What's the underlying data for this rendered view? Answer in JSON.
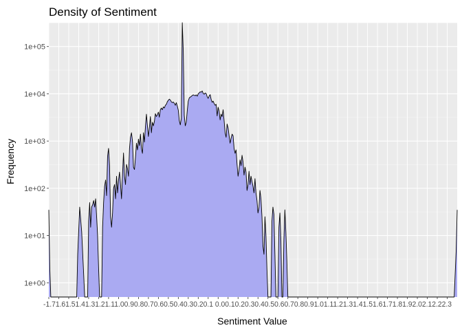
{
  "chart_data": {
    "type": "area",
    "title": "Density of Sentiment",
    "xlabel": "Sentiment Value",
    "ylabel": "Frequency",
    "y_scale": "log10",
    "ylim": [
      0.5,
      320000
    ],
    "xlim": [
      -1.7,
      2.4
    ],
    "grid": true,
    "legend": "none",
    "y_ticks": [
      {
        "value": 1,
        "label": "1e+00"
      },
      {
        "value": 10,
        "label": "1e+01"
      },
      {
        "value": 100,
        "label": "1e+02"
      },
      {
        "value": 1000,
        "label": "1e+03"
      },
      {
        "value": 10000,
        "label": "1e+04"
      },
      {
        "value": 100000,
        "label": "1e+05"
      }
    ],
    "x_tick_text": "-1.71.61.51.41.31.21.11.00.90.80.70.60.50.40.30.20.1 0.00.10.20.30.40.50.60.70.80.91.01.11.21.31.41.51.61.71.81.92.02.12.22.3",
    "x_tick_values": [
      -1.7,
      -1.6,
      -1.5,
      -1.4,
      -1.3,
      -1.2,
      -1.1,
      -1.0,
      -0.9,
      -0.8,
      -0.7,
      -0.6,
      -0.5,
      -0.4,
      -0.3,
      -0.2,
      -0.1,
      0.0,
      0.1,
      0.2,
      0.3,
      0.4,
      0.5,
      0.6,
      0.7,
      0.8,
      0.9,
      1.0,
      1.1,
      1.2,
      1.3,
      1.4,
      1.5,
      1.6,
      1.7,
      1.8,
      1.9,
      2.0,
      2.1,
      2.2,
      2.3
    ],
    "series": [
      {
        "fill": "#aaaaf2",
        "stroke": "#000000",
        "points": [
          [
            -1.7,
            35
          ],
          [
            -1.69,
            2
          ],
          [
            -1.68,
            0.5
          ],
          [
            -1.42,
            0.5
          ],
          [
            -1.41,
            4
          ],
          [
            -1.39,
            40
          ],
          [
            -1.37,
            12
          ],
          [
            -1.35,
            1.5
          ],
          [
            -1.34,
            0.5
          ],
          [
            -1.31,
            0.5
          ],
          [
            -1.3,
            20
          ],
          [
            -1.29,
            50
          ],
          [
            -1.28,
            15
          ],
          [
            -1.27,
            40
          ],
          [
            -1.26,
            45
          ],
          [
            -1.25,
            55
          ],
          [
            -1.24,
            40
          ],
          [
            -1.23,
            60
          ],
          [
            -1.22,
            25
          ],
          [
            -1.21,
            10
          ],
          [
            -1.2,
            2
          ],
          [
            -1.19,
            0.5
          ],
          [
            -1.17,
            0.5
          ],
          [
            -1.16,
            15
          ],
          [
            -1.15,
            50
          ],
          [
            -1.14,
            110
          ],
          [
            -1.13,
            150
          ],
          [
            -1.12,
            70
          ],
          [
            -1.11,
            480
          ],
          [
            -1.1,
            700
          ],
          [
            -1.09,
            300
          ],
          [
            -1.08,
            25
          ],
          [
            -1.07,
            15
          ],
          [
            -1.06,
            30
          ],
          [
            -1.05,
            100
          ],
          [
            -1.04,
            120
          ],
          [
            -1.03,
            60
          ],
          [
            -1.02,
            180
          ],
          [
            -1.01,
            80
          ],
          [
            -1.0,
            150
          ],
          [
            -0.99,
            220
          ],
          [
            -0.98,
            120
          ],
          [
            -0.97,
            60
          ],
          [
            -0.96,
            200
          ],
          [
            -0.95,
            560
          ],
          [
            -0.94,
            180
          ],
          [
            -0.93,
            120
          ],
          [
            -0.92,
            320
          ],
          [
            -0.91,
            260
          ],
          [
            -0.9,
            180
          ],
          [
            -0.89,
            700
          ],
          [
            -0.88,
            1200
          ],
          [
            -0.87,
            1500
          ],
          [
            -0.86,
            1000
          ],
          [
            -0.85,
            280
          ],
          [
            -0.84,
            250
          ],
          [
            -0.83,
            450
          ],
          [
            -0.82,
            900
          ],
          [
            -0.81,
            650
          ],
          [
            -0.8,
            1100
          ],
          [
            -0.79,
            800
          ],
          [
            -0.78,
            1400
          ],
          [
            -0.77,
            700
          ],
          [
            -0.76,
            550
          ],
          [
            -0.75,
            1500
          ],
          [
            -0.74,
            950
          ],
          [
            -0.73,
            2000
          ],
          [
            -0.72,
            3700
          ],
          [
            -0.71,
            2100
          ],
          [
            -0.7,
            1250
          ],
          [
            -0.69,
            2000
          ],
          [
            -0.68,
            3300
          ],
          [
            -0.67,
            1500
          ],
          [
            -0.66,
            2500
          ],
          [
            -0.65,
            2100
          ],
          [
            -0.64,
            2600
          ],
          [
            -0.63,
            3800
          ],
          [
            -0.62,
            3300
          ],
          [
            -0.61,
            3600
          ],
          [
            -0.6,
            4100
          ],
          [
            -0.59,
            3200
          ],
          [
            -0.58,
            4600
          ],
          [
            -0.57,
            5000
          ],
          [
            -0.56,
            4600
          ],
          [
            -0.55,
            5300
          ],
          [
            -0.54,
            5000
          ],
          [
            -0.53,
            5700
          ],
          [
            -0.52,
            6000
          ],
          [
            -0.51,
            6800
          ],
          [
            -0.5,
            7300
          ],
          [
            -0.49,
            7700
          ],
          [
            -0.48,
            7400
          ],
          [
            -0.47,
            6800
          ],
          [
            -0.46,
            6500
          ],
          [
            -0.45,
            6700
          ],
          [
            -0.44,
            6300
          ],
          [
            -0.43,
            5700
          ],
          [
            -0.42,
            6500
          ],
          [
            -0.41,
            5500
          ],
          [
            -0.4,
            4500
          ],
          [
            -0.39,
            2700
          ],
          [
            -0.38,
            2200
          ],
          [
            -0.37,
            3000
          ],
          [
            -0.36,
            320000
          ],
          [
            -0.35,
            80000
          ],
          [
            -0.34,
            3500
          ],
          [
            -0.33,
            2100
          ],
          [
            -0.32,
            2500
          ],
          [
            -0.31,
            4400
          ],
          [
            -0.3,
            7000
          ],
          [
            -0.29,
            8200
          ],
          [
            -0.28,
            8500
          ],
          [
            -0.27,
            8800
          ],
          [
            -0.26,
            9200
          ],
          [
            -0.25,
            9500
          ],
          [
            -0.24,
            9300
          ],
          [
            -0.23,
            9100
          ],
          [
            -0.22,
            9500
          ],
          [
            -0.21,
            8900
          ],
          [
            -0.2,
            10000
          ],
          [
            -0.19,
            10500
          ],
          [
            -0.18,
            11000
          ],
          [
            -0.17,
            10800
          ],
          [
            -0.16,
            11500
          ],
          [
            -0.15,
            10200
          ],
          [
            -0.14,
            9800
          ],
          [
            -0.13,
            10400
          ],
          [
            -0.12,
            10100
          ],
          [
            -0.11,
            8700
          ],
          [
            -0.1,
            8000
          ],
          [
            -0.09,
            9000
          ],
          [
            -0.08,
            9600
          ],
          [
            -0.07,
            7600
          ],
          [
            -0.06,
            6600
          ],
          [
            -0.05,
            7000
          ],
          [
            -0.04,
            6200
          ],
          [
            -0.03,
            5700
          ],
          [
            -0.02,
            6000
          ],
          [
            -0.01,
            3400
          ],
          [
            0.0,
            5200
          ],
          [
            0.01,
            4300
          ],
          [
            0.02,
            2800
          ],
          [
            0.03,
            3700
          ],
          [
            0.04,
            3300
          ],
          [
            0.05,
            4600
          ],
          [
            0.06,
            2700
          ],
          [
            0.07,
            1500
          ],
          [
            0.08,
            1200
          ],
          [
            0.09,
            2300
          ],
          [
            0.1,
            1900
          ],
          [
            0.11,
            1300
          ],
          [
            0.12,
            900
          ],
          [
            0.13,
            1150
          ],
          [
            0.14,
            1400
          ],
          [
            0.15,
            1300
          ],
          [
            0.16,
            700
          ],
          [
            0.17,
            550
          ],
          [
            0.18,
            650
          ],
          [
            0.19,
            320
          ],
          [
            0.2,
            180
          ],
          [
            0.21,
            250
          ],
          [
            0.22,
            400
          ],
          [
            0.23,
            300
          ],
          [
            0.24,
            500
          ],
          [
            0.25,
            360
          ],
          [
            0.26,
            190
          ],
          [
            0.27,
            280
          ],
          [
            0.28,
            220
          ],
          [
            0.29,
            90
          ],
          [
            0.3,
            120
          ],
          [
            0.31,
            230
          ],
          [
            0.32,
            120
          ],
          [
            0.33,
            180
          ],
          [
            0.34,
            140
          ],
          [
            0.35,
            110
          ],
          [
            0.36,
            80
          ],
          [
            0.37,
            160
          ],
          [
            0.38,
            80
          ],
          [
            0.39,
            55
          ],
          [
            0.4,
            30
          ],
          [
            0.41,
            40
          ],
          [
            0.42,
            90
          ],
          [
            0.43,
            60
          ],
          [
            0.44,
            25
          ],
          [
            0.45,
            6
          ],
          [
            0.46,
            4
          ],
          [
            0.47,
            25
          ],
          [
            0.48,
            10
          ],
          [
            0.49,
            2
          ],
          [
            0.5,
            0.5
          ],
          [
            0.53,
            0.5
          ],
          [
            0.54,
            20
          ],
          [
            0.55,
            40
          ],
          [
            0.56,
            28
          ],
          [
            0.57,
            4
          ],
          [
            0.58,
            0.5
          ],
          [
            0.6,
            0.5
          ],
          [
            0.61,
            15
          ],
          [
            0.62,
            30
          ],
          [
            0.63,
            8
          ],
          [
            0.64,
            0.5
          ],
          [
            0.65,
            0.5
          ],
          [
            0.66,
            8
          ],
          [
            0.67,
            35
          ],
          [
            0.68,
            12
          ],
          [
            0.69,
            3
          ],
          [
            0.7,
            0.5
          ],
          [
            2.37,
            0.5
          ],
          [
            2.39,
            5
          ],
          [
            2.4,
            35
          ]
        ]
      }
    ]
  }
}
